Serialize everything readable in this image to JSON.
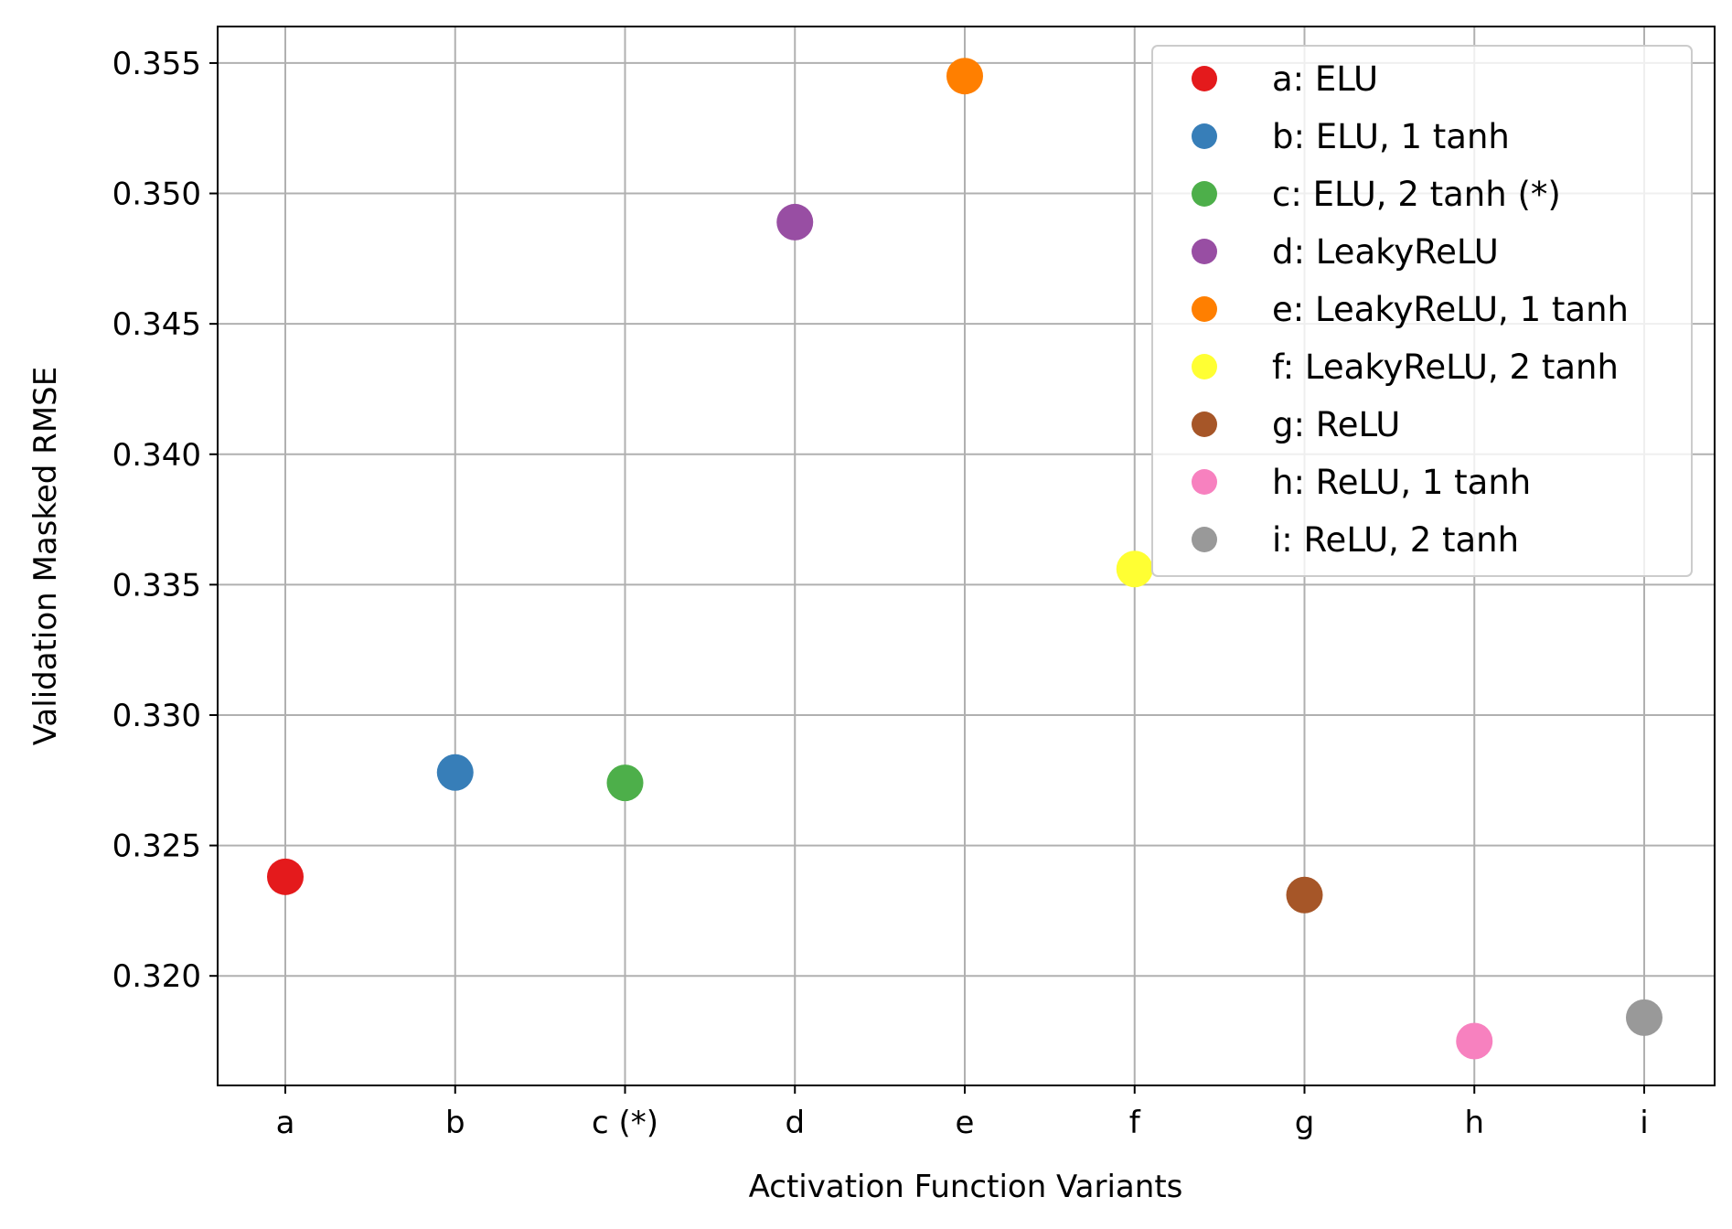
{
  "chart_data": {
    "type": "scatter",
    "title": "",
    "xlabel": "Activation Function Variants",
    "ylabel": "Validation Masked RMSE",
    "categories": [
      "a",
      "b",
      "c (*)",
      "d",
      "e",
      "f",
      "g",
      "h",
      "i"
    ],
    "y_ticks": [
      "0.320",
      "0.325",
      "0.330",
      "0.335",
      "0.340",
      "0.345",
      "0.350",
      "0.355"
    ],
    "ylim": [
      0.3158,
      0.3564
    ],
    "grid": true,
    "legend_position": "top-right",
    "series": [
      {
        "name": "a: ELU",
        "x": "a",
        "value": 0.3238,
        "color": "#e41a1c"
      },
      {
        "name": "b: ELU, 1 tanh",
        "x": "b",
        "value": 0.3278,
        "color": "#377eb8"
      },
      {
        "name": "c: ELU, 2 tanh (*)",
        "x": "c (*)",
        "value": 0.3274,
        "color": "#4daf4a"
      },
      {
        "name": "d: LeakyReLU",
        "x": "d",
        "value": 0.3489,
        "color": "#984ea3"
      },
      {
        "name": "e: LeakyReLU, 1 tanh",
        "x": "e",
        "value": 0.3545,
        "color": "#ff7f00"
      },
      {
        "name": "f: LeakyReLU, 2 tanh",
        "x": "f",
        "value": 0.3356,
        "color": "#ffff33"
      },
      {
        "name": "g: ReLU",
        "x": "g",
        "value": 0.3231,
        "color": "#a65628"
      },
      {
        "name": "h: ReLU, 1 tanh",
        "x": "h",
        "value": 0.3175,
        "color": "#f781bf"
      },
      {
        "name": "i: ReLU, 2 tanh",
        "x": "i",
        "value": 0.3184,
        "color": "#999999"
      }
    ]
  }
}
